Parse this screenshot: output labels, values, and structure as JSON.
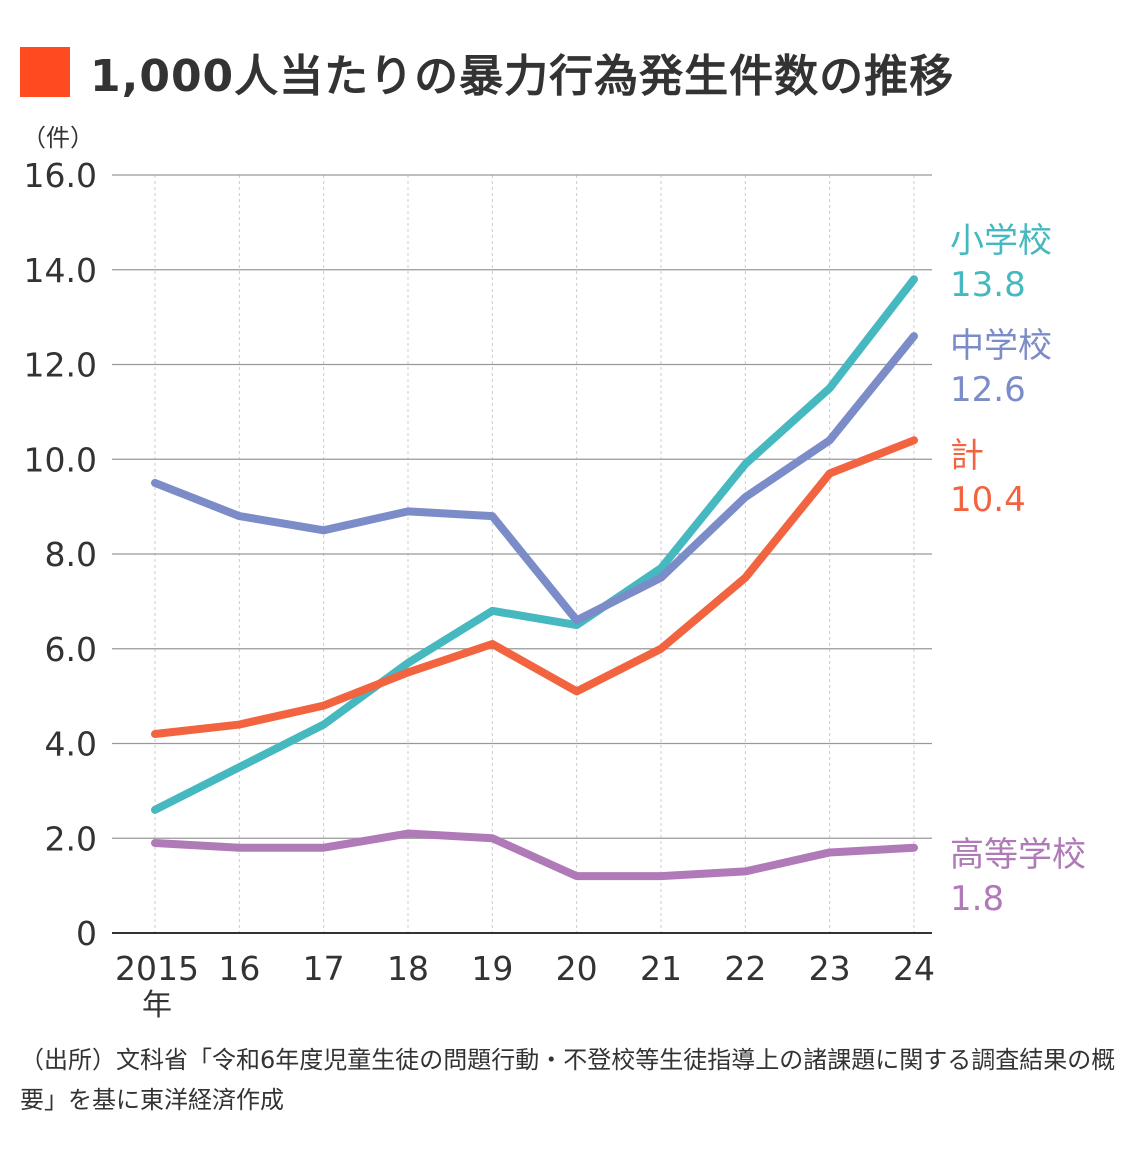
{
  "title": "1,000人当たりの暴力行為発生件数の推移",
  "title_color": "#ff4b1f",
  "source": "（出所）文科省「令和6年度児童生徒の問題行動・不登校等生徒指導上の諸課題に関する調査結果の概要」を基に東洋経済作成",
  "chart_data": {
    "type": "line",
    "ylabel": "（件）",
    "ylim": [
      0,
      16
    ],
    "yticks": [
      "0",
      "2.0",
      "4.0",
      "6.0",
      "8.0",
      "10.0",
      "12.0",
      "14.0",
      "16.0"
    ],
    "x": [
      "2015",
      "16",
      "17",
      "18",
      "19",
      "20",
      "21",
      "22",
      "23",
      "24"
    ],
    "x_first_suffix": "年",
    "grid": true,
    "legend": "right end labels",
    "series": [
      {
        "name": "小学校",
        "end_label": "13.8",
        "color": "#45b8c0",
        "values": [
          2.6,
          3.5,
          4.4,
          5.7,
          6.8,
          6.5,
          7.7,
          9.9,
          11.5,
          13.8
        ]
      },
      {
        "name": "中学校",
        "end_label": "12.6",
        "color": "#7b8cc8",
        "values": [
          9.5,
          8.8,
          8.5,
          8.9,
          8.8,
          6.6,
          7.5,
          9.2,
          10.4,
          12.6
        ]
      },
      {
        "name": "計",
        "end_label": "10.4",
        "color": "#f26440",
        "values": [
          4.2,
          4.4,
          4.8,
          5.5,
          6.1,
          5.1,
          6.0,
          7.5,
          9.7,
          10.4
        ]
      },
      {
        "name": "高等学校",
        "end_label": "1.8",
        "color": "#b07ab8",
        "values": [
          1.9,
          1.8,
          1.8,
          2.1,
          2.0,
          1.2,
          1.2,
          1.3,
          1.7,
          1.8
        ]
      }
    ]
  }
}
